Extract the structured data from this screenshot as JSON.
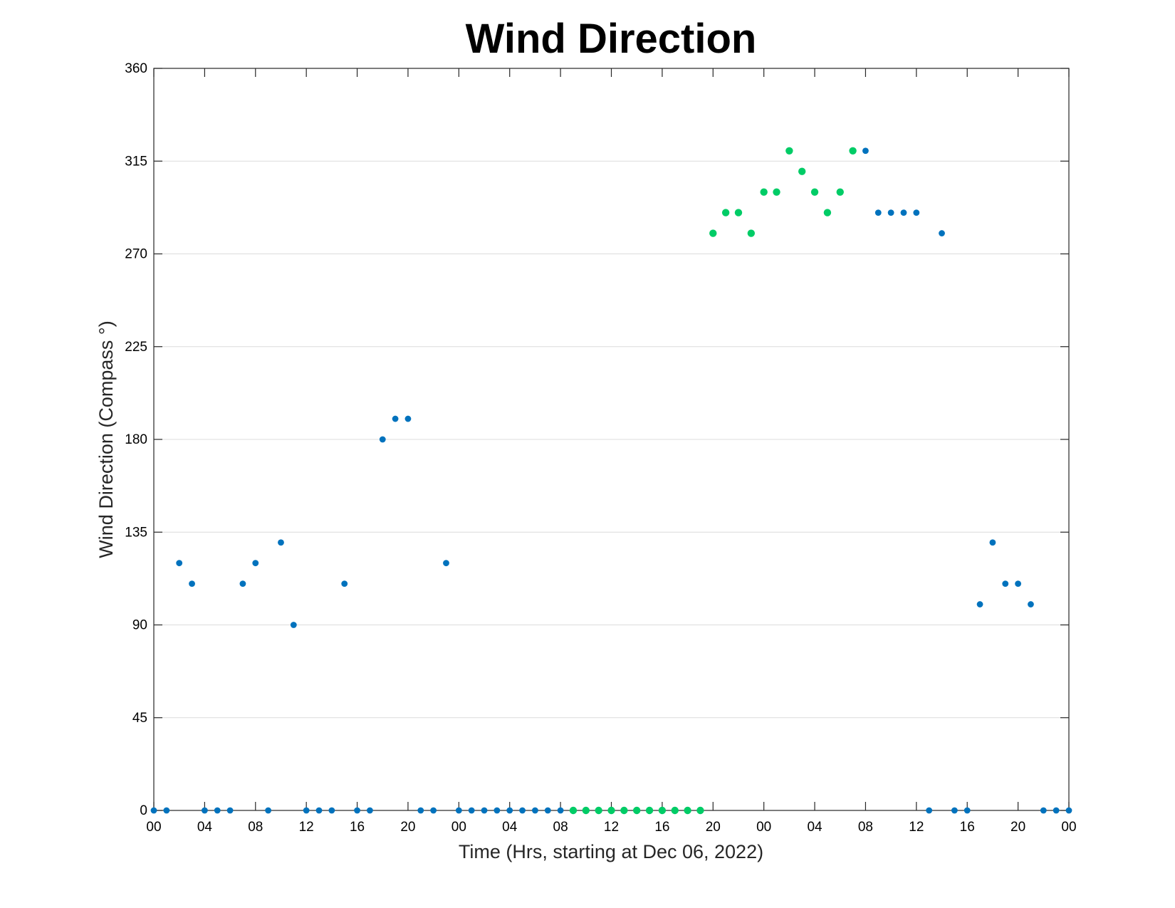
{
  "chart_data": {
    "type": "scatter",
    "title": "Wind Direction",
    "xlabel": "Time (Hrs, starting at Dec 06, 2022)",
    "ylabel": "Wind Direction (Compass °)",
    "xlim": [
      0,
      72
    ],
    "ylim": [
      0,
      360
    ],
    "yticks": [
      0,
      45,
      90,
      135,
      180,
      225,
      270,
      315,
      360
    ],
    "xticks": [
      {
        "x": 0,
        "label": "00"
      },
      {
        "x": 4,
        "label": "04"
      },
      {
        "x": 8,
        "label": "08"
      },
      {
        "x": 12,
        "label": "12"
      },
      {
        "x": 16,
        "label": "16"
      },
      {
        "x": 20,
        "label": "20"
      },
      {
        "x": 24,
        "label": "00"
      },
      {
        "x": 28,
        "label": "04"
      },
      {
        "x": 32,
        "label": "08"
      },
      {
        "x": 36,
        "label": "12"
      },
      {
        "x": 40,
        "label": "16"
      },
      {
        "x": 44,
        "label": "20"
      },
      {
        "x": 48,
        "label": "00"
      },
      {
        "x": 52,
        "label": "04"
      },
      {
        "x": 56,
        "label": "08"
      },
      {
        "x": 60,
        "label": "12"
      },
      {
        "x": 64,
        "label": "16"
      },
      {
        "x": 68,
        "label": "20"
      },
      {
        "x": 72,
        "label": "00"
      }
    ],
    "grid": "y",
    "series": [
      {
        "color": "#0072BD",
        "points": [
          [
            0,
            0
          ],
          [
            1,
            0
          ],
          [
            2,
            120
          ],
          [
            3,
            110
          ],
          [
            4,
            0
          ],
          [
            5,
            0
          ],
          [
            6,
            0
          ],
          [
            7,
            110
          ],
          [
            8,
            120
          ],
          [
            9,
            0
          ],
          [
            10,
            130
          ],
          [
            11,
            90
          ],
          [
            12,
            0
          ],
          [
            13,
            0
          ],
          [
            14,
            0
          ],
          [
            15,
            110
          ],
          [
            16,
            0
          ],
          [
            17,
            0
          ],
          [
            18,
            180
          ],
          [
            19,
            190
          ],
          [
            20,
            190
          ],
          [
            21,
            0
          ],
          [
            22,
            0
          ],
          [
            23,
            120
          ],
          [
            24,
            0
          ],
          [
            25,
            0
          ],
          [
            26,
            0
          ],
          [
            27,
            0
          ],
          [
            28,
            0
          ],
          [
            29,
            0
          ],
          [
            30,
            0
          ],
          [
            31,
            0
          ],
          [
            32,
            0
          ],
          [
            56,
            320
          ],
          [
            57,
            290
          ],
          [
            58,
            290
          ],
          [
            59,
            290
          ],
          [
            60,
            290
          ],
          [
            61,
            0
          ],
          [
            62,
            280
          ],
          [
            63,
            0
          ],
          [
            64,
            0
          ],
          [
            65,
            100
          ],
          [
            66,
            130
          ],
          [
            67,
            110
          ],
          [
            68,
            110
          ],
          [
            69,
            100
          ],
          [
            70,
            0
          ],
          [
            71,
            0
          ],
          [
            72,
            0
          ]
        ]
      },
      {
        "color": "#00CC66",
        "points": [
          [
            33,
            0
          ],
          [
            34,
            0
          ],
          [
            35,
            0
          ],
          [
            36,
            0
          ],
          [
            37,
            0
          ],
          [
            38,
            0
          ],
          [
            39,
            0
          ],
          [
            40,
            0
          ],
          [
            41,
            0
          ],
          [
            42,
            0
          ],
          [
            43,
            0
          ],
          [
            44,
            280
          ],
          [
            45,
            290
          ],
          [
            46,
            290
          ],
          [
            47,
            280
          ],
          [
            48,
            300
          ],
          [
            49,
            300
          ],
          [
            50,
            320
          ],
          [
            51,
            310
          ],
          [
            52,
            300
          ],
          [
            53,
            290
          ],
          [
            54,
            300
          ],
          [
            55,
            320
          ]
        ]
      }
    ]
  }
}
